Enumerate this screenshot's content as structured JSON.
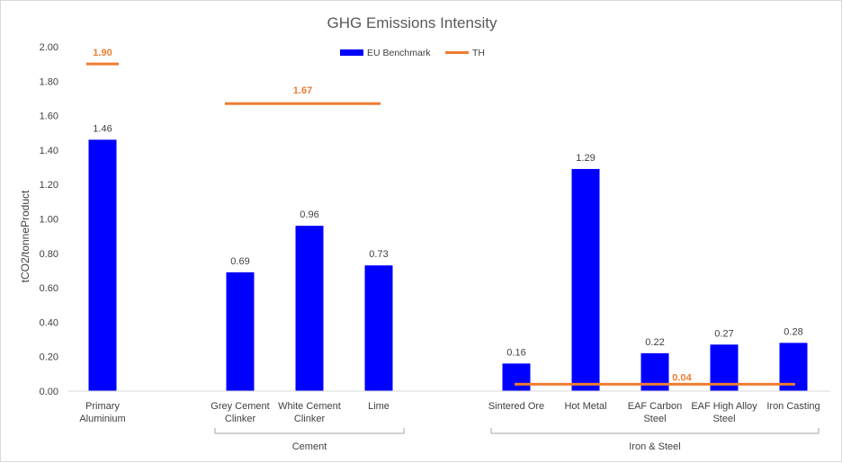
{
  "chart_data": {
    "type": "bar",
    "title": "GHG Emissions Intensity",
    "ylabel": "tCO2/tonneProduct",
    "xlabel": "",
    "ylim": [
      0,
      2.0
    ],
    "yticks": [
      "0.00",
      "0.20",
      "0.40",
      "0.60",
      "0.80",
      "1.00",
      "1.20",
      "1.40",
      "1.60",
      "1.80",
      "2.00"
    ],
    "grid": false,
    "legend_position": "top-center",
    "categories": [
      [
        "Primary",
        "Aluminium"
      ],
      [
        "Grey Cement",
        "Clinker"
      ],
      [
        "White Cement",
        "Clinker"
      ],
      [
        "Lime"
      ],
      [
        "Sintered Ore"
      ],
      [
        "Hot Metal"
      ],
      [
        "EAF Carbon",
        "Steel"
      ],
      [
        "EAF High Alloy",
        "Steel"
      ],
      [
        "Iron Casting"
      ]
    ],
    "groups": [
      {
        "label": "",
        "categories": [
          0
        ]
      },
      {
        "label": "Cement",
        "categories": [
          1,
          2,
          3
        ]
      },
      {
        "label": "Iron & Steel",
        "categories": [
          4,
          5,
          6,
          7,
          8
        ]
      }
    ],
    "series": [
      {
        "name": "EU Benchmark",
        "kind": "bar",
        "color": "#0000FF",
        "values": [
          1.46,
          0.69,
          0.96,
          0.73,
          0.16,
          1.29,
          0.22,
          0.27,
          0.28
        ],
        "labels": [
          "1.46",
          "0.69",
          "0.96",
          "0.73",
          "0.16",
          "1.29",
          "0.22",
          "0.27",
          "0.28"
        ]
      },
      {
        "name": "TH",
        "kind": "line-segment",
        "color": "#ED7D31",
        "segments": [
          {
            "from": 0,
            "to": 0,
            "value": 1.9,
            "label": "1.90"
          },
          {
            "from": 1,
            "to": 3,
            "value": 1.67,
            "label": "1.67"
          },
          {
            "from": 4,
            "to": 8,
            "value": 0.04,
            "label": "0.04"
          }
        ]
      }
    ]
  }
}
